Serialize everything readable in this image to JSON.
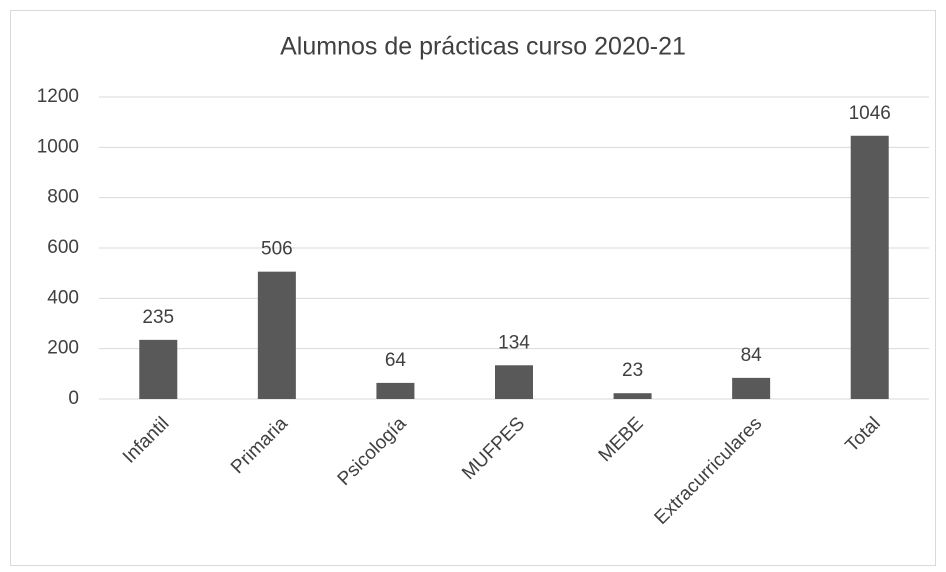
{
  "chart_data": {
    "type": "bar",
    "title": "Alumnos de prácticas curso 2020-21",
    "categories": [
      "Infantil",
      "Primaria",
      "Psicología",
      "MUFPES",
      "MEBE",
      "Extracurriculares",
      "Total"
    ],
    "values": [
      235,
      506,
      64,
      134,
      23,
      84,
      1046
    ],
    "color": "#595959",
    "ylim": [
      0,
      1200
    ],
    "yticks": [
      0,
      200,
      400,
      600,
      800,
      1000,
      1200
    ],
    "grid": true
  }
}
